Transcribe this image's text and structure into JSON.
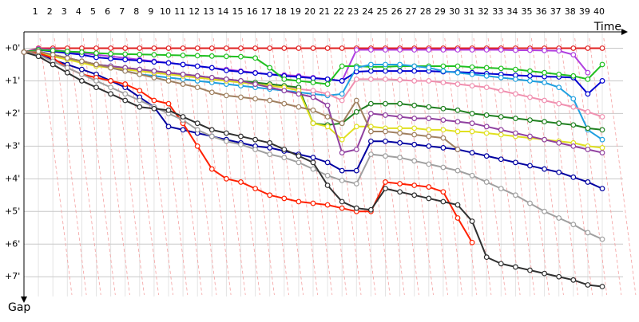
{
  "chart_data": {
    "type": "line",
    "x_label": "Time",
    "y_label": "Gap",
    "x": [
      0,
      1,
      2,
      3,
      4,
      5,
      6,
      7,
      8,
      9,
      10,
      11,
      12,
      13,
      14,
      15,
      16,
      17,
      18,
      19,
      20,
      21,
      22,
      23,
      24,
      25,
      26,
      27,
      28,
      29,
      30,
      31,
      32,
      33,
      34,
      35,
      36,
      37,
      38,
      39,
      40
    ],
    "xlim": [
      0,
      40
    ],
    "xticks": [
      1,
      2,
      3,
      4,
      5,
      6,
      7,
      8,
      9,
      10,
      11,
      12,
      13,
      14,
      15,
      16,
      17,
      18,
      19,
      20,
      21,
      22,
      23,
      24,
      25,
      26,
      27,
      28,
      29,
      30,
      31,
      32,
      33,
      34,
      35,
      36,
      37,
      38,
      39,
      40
    ],
    "ylim": [
      -0.5,
      7.8
    ],
    "y_inverted": true,
    "yticks": [
      {
        "value": 0,
        "label": "+0'"
      },
      {
        "value": 1,
        "label": "+1'"
      },
      {
        "value": 2,
        "label": "+2'"
      },
      {
        "value": 3,
        "label": "+3'"
      },
      {
        "value": 4,
        "label": "+4'"
      },
      {
        "value": 5,
        "label": "+5'"
      },
      {
        "value": 6,
        "label": "+6'"
      },
      {
        "value": 7,
        "label": "+7'"
      }
    ],
    "grid": true,
    "series": [
      {
        "color": "#e02020",
        "values": [
          0.12,
          0,
          0,
          0,
          0,
          0,
          0,
          0,
          0,
          0,
          0,
          0,
          0,
          0,
          0,
          0,
          0,
          0,
          0,
          0,
          0,
          0,
          0,
          0,
          0,
          0,
          0,
          0,
          0,
          0,
          0,
          0,
          0,
          0,
          0,
          0,
          0,
          0,
          0,
          0,
          0
        ]
      },
      {
        "color": "#b040e0",
        "values": [
          0.12,
          0.02,
          0.05,
          0.1,
          0.15,
          0.2,
          0.25,
          0.3,
          0.35,
          0.4,
          0.45,
          0.5,
          0.55,
          0.6,
          0.65,
          0.7,
          0.75,
          0.8,
          0.82,
          0.85,
          0.9,
          0.95,
          1.0,
          0.05,
          0.05,
          0.05,
          0.05,
          0.05,
          0.05,
          0.05,
          0.05,
          0.05,
          0.05,
          0.05,
          0.06,
          0.06,
          0.07,
          0.08,
          0.2,
          0.75,
          null
        ]
      },
      {
        "color": "#0000d0",
        "values": [
          0.12,
          0.05,
          0.1,
          0.15,
          0.2,
          0.28,
          0.32,
          0.35,
          0.38,
          0.42,
          0.45,
          0.5,
          0.55,
          0.6,
          0.68,
          0.72,
          0.76,
          0.8,
          0.85,
          0.88,
          0.92,
          0.95,
          1.0,
          0.72,
          0.7,
          0.7,
          0.7,
          0.7,
          0.7,
          0.72,
          0.73,
          0.75,
          0.78,
          0.8,
          0.83,
          0.85,
          0.87,
          0.88,
          0.9,
          1.4,
          1.0
        ]
      },
      {
        "color": "#20c020",
        "values": [
          0.12,
          0.05,
          0.07,
          0.1,
          0.12,
          0.15,
          0.17,
          0.18,
          0.19,
          0.2,
          0.21,
          0.22,
          0.23,
          0.24,
          0.25,
          0.26,
          0.3,
          0.6,
          0.95,
          1.0,
          1.05,
          1.1,
          0.55,
          0.55,
          0.57,
          0.57,
          0.55,
          0.55,
          0.55,
          0.55,
          0.55,
          0.58,
          0.6,
          0.62,
          0.65,
          0.7,
          0.75,
          0.8,
          0.85,
          0.95,
          0.5
        ]
      },
      {
        "color": "#20a0e0",
        "values": [
          0.12,
          0.1,
          0.2,
          0.3,
          0.4,
          0.5,
          0.6,
          0.7,
          0.8,
          0.85,
          0.9,
          0.95,
          1.0,
          1.05,
          1.1,
          1.15,
          1.2,
          1.25,
          1.3,
          1.35,
          1.4,
          1.45,
          1.4,
          0.6,
          0.5,
          0.5,
          0.5,
          0.55,
          0.6,
          0.7,
          0.75,
          0.8,
          0.85,
          0.9,
          0.95,
          1.0,
          1.05,
          1.2,
          1.55,
          2.5,
          2.8
        ]
      },
      {
        "color": "#f090b0",
        "values": [
          0.12,
          0.1,
          0.2,
          0.3,
          0.4,
          0.5,
          0.6,
          0.65,
          0.7,
          0.75,
          0.8,
          0.85,
          0.9,
          0.95,
          1.0,
          1.05,
          1.1,
          1.15,
          1.2,
          1.25,
          1.3,
          1.4,
          1.6,
          0.95,
          0.95,
          0.95,
          0.97,
          1.0,
          1.0,
          1.05,
          1.1,
          1.15,
          1.2,
          1.3,
          1.4,
          1.5,
          1.6,
          1.7,
          1.8,
          1.95,
          2.1
        ]
      },
      {
        "color": "#208020",
        "values": [
          0.12,
          0.1,
          0.2,
          0.3,
          0.4,
          0.5,
          0.55,
          0.6,
          0.65,
          0.7,
          0.75,
          0.8,
          0.85,
          0.9,
          0.95,
          1.0,
          1.05,
          1.1,
          1.15,
          1.2,
          2.3,
          2.35,
          2.3,
          1.95,
          1.7,
          1.7,
          1.7,
          1.75,
          1.8,
          1.85,
          1.9,
          2.0,
          2.05,
          2.1,
          2.15,
          2.2,
          2.25,
          2.3,
          2.35,
          2.45,
          2.5
        ]
      },
      {
        "color": "#e0e020",
        "values": [
          0.12,
          0.15,
          0.25,
          0.35,
          0.45,
          0.55,
          0.6,
          0.65,
          0.7,
          0.75,
          0.8,
          0.85,
          0.9,
          0.95,
          1.0,
          1.05,
          1.1,
          1.15,
          1.2,
          1.3,
          2.3,
          2.4,
          2.8,
          2.4,
          2.4,
          2.45,
          2.45,
          2.45,
          2.5,
          2.5,
          2.55,
          2.55,
          2.6,
          2.65,
          2.7,
          2.75,
          2.8,
          2.85,
          2.9,
          3.0,
          3.05
        ]
      },
      {
        "color": "#9040a0",
        "values": [
          0.12,
          0.1,
          0.2,
          0.3,
          0.4,
          0.5,
          0.55,
          0.6,
          0.65,
          0.7,
          0.75,
          0.8,
          0.85,
          0.9,
          0.95,
          1.0,
          1.1,
          1.2,
          1.3,
          1.4,
          1.5,
          1.75,
          3.2,
          3.1,
          2.0,
          2.05,
          2.1,
          2.15,
          2.15,
          2.2,
          2.25,
          2.3,
          2.4,
          2.5,
          2.6,
          2.7,
          2.8,
          2.9,
          3.0,
          3.1,
          3.2
        ]
      },
      {
        "color": "#0000a0",
        "values": [
          0.12,
          0.2,
          0.35,
          0.5,
          0.65,
          0.8,
          1.0,
          1.2,
          1.5,
          1.8,
          2.4,
          2.5,
          2.6,
          2.7,
          2.8,
          2.9,
          3.0,
          3.05,
          3.15,
          3.25,
          3.35,
          3.5,
          3.75,
          3.75,
          2.85,
          2.85,
          2.9,
          2.95,
          3.0,
          3.05,
          3.1,
          3.2,
          3.3,
          3.4,
          3.5,
          3.6,
          3.7,
          3.8,
          3.95,
          4.1,
          4.3
        ]
      },
      {
        "color": "#ff2000",
        "values": [
          0.12,
          0.15,
          0.3,
          0.6,
          0.8,
          0.9,
          1.0,
          1.1,
          1.3,
          1.6,
          1.7,
          2.3,
          3.0,
          3.7,
          4.0,
          4.1,
          4.3,
          4.5,
          4.6,
          4.7,
          4.75,
          4.8,
          4.9,
          5.0,
          5.0,
          4.1,
          4.15,
          4.2,
          4.25,
          4.4,
          5.2,
          5.95,
          null,
          null,
          null,
          null,
          null,
          null,
          null,
          null,
          null
        ]
      },
      {
        "color": "#a0a0a0",
        "values": [
          0.12,
          0.2,
          0.4,
          0.6,
          0.8,
          1.0,
          1.2,
          1.4,
          1.6,
          1.8,
          2.0,
          2.2,
          2.5,
          2.7,
          2.85,
          2.95,
          3.1,
          3.25,
          3.35,
          3.5,
          3.7,
          3.9,
          4.05,
          4.15,
          3.25,
          3.3,
          3.35,
          3.45,
          3.55,
          3.65,
          3.75,
          3.9,
          4.1,
          4.3,
          4.5,
          4.75,
          5.0,
          5.2,
          5.4,
          5.65,
          5.85
        ]
      },
      {
        "color": "#303030",
        "values": [
          0.12,
          0.25,
          0.5,
          0.75,
          1.0,
          1.2,
          1.4,
          1.6,
          1.8,
          1.85,
          1.9,
          2.1,
          2.3,
          2.5,
          2.6,
          2.7,
          2.8,
          2.9,
          3.1,
          3.3,
          3.5,
          4.2,
          4.7,
          4.9,
          4.95,
          4.3,
          4.4,
          4.5,
          4.6,
          4.7,
          4.8,
          5.3,
          6.4,
          6.6,
          6.7,
          6.8,
          6.9,
          7.0,
          7.1,
          7.25,
          7.3
        ]
      },
      {
        "color": "#a08060",
        "values": [
          0.12,
          0.1,
          0.2,
          0.3,
          0.4,
          0.5,
          0.6,
          0.7,
          0.8,
          0.9,
          1.0,
          1.1,
          1.2,
          1.35,
          1.45,
          1.5,
          1.55,
          1.6,
          1.7,
          1.8,
          1.9,
          2.1,
          2.3,
          1.6,
          2.55,
          2.55,
          2.6,
          2.65,
          2.7,
          2.75,
          3.1,
          null,
          null,
          null,
          null,
          null,
          null,
          null,
          null,
          null,
          null
        ]
      }
    ]
  }
}
